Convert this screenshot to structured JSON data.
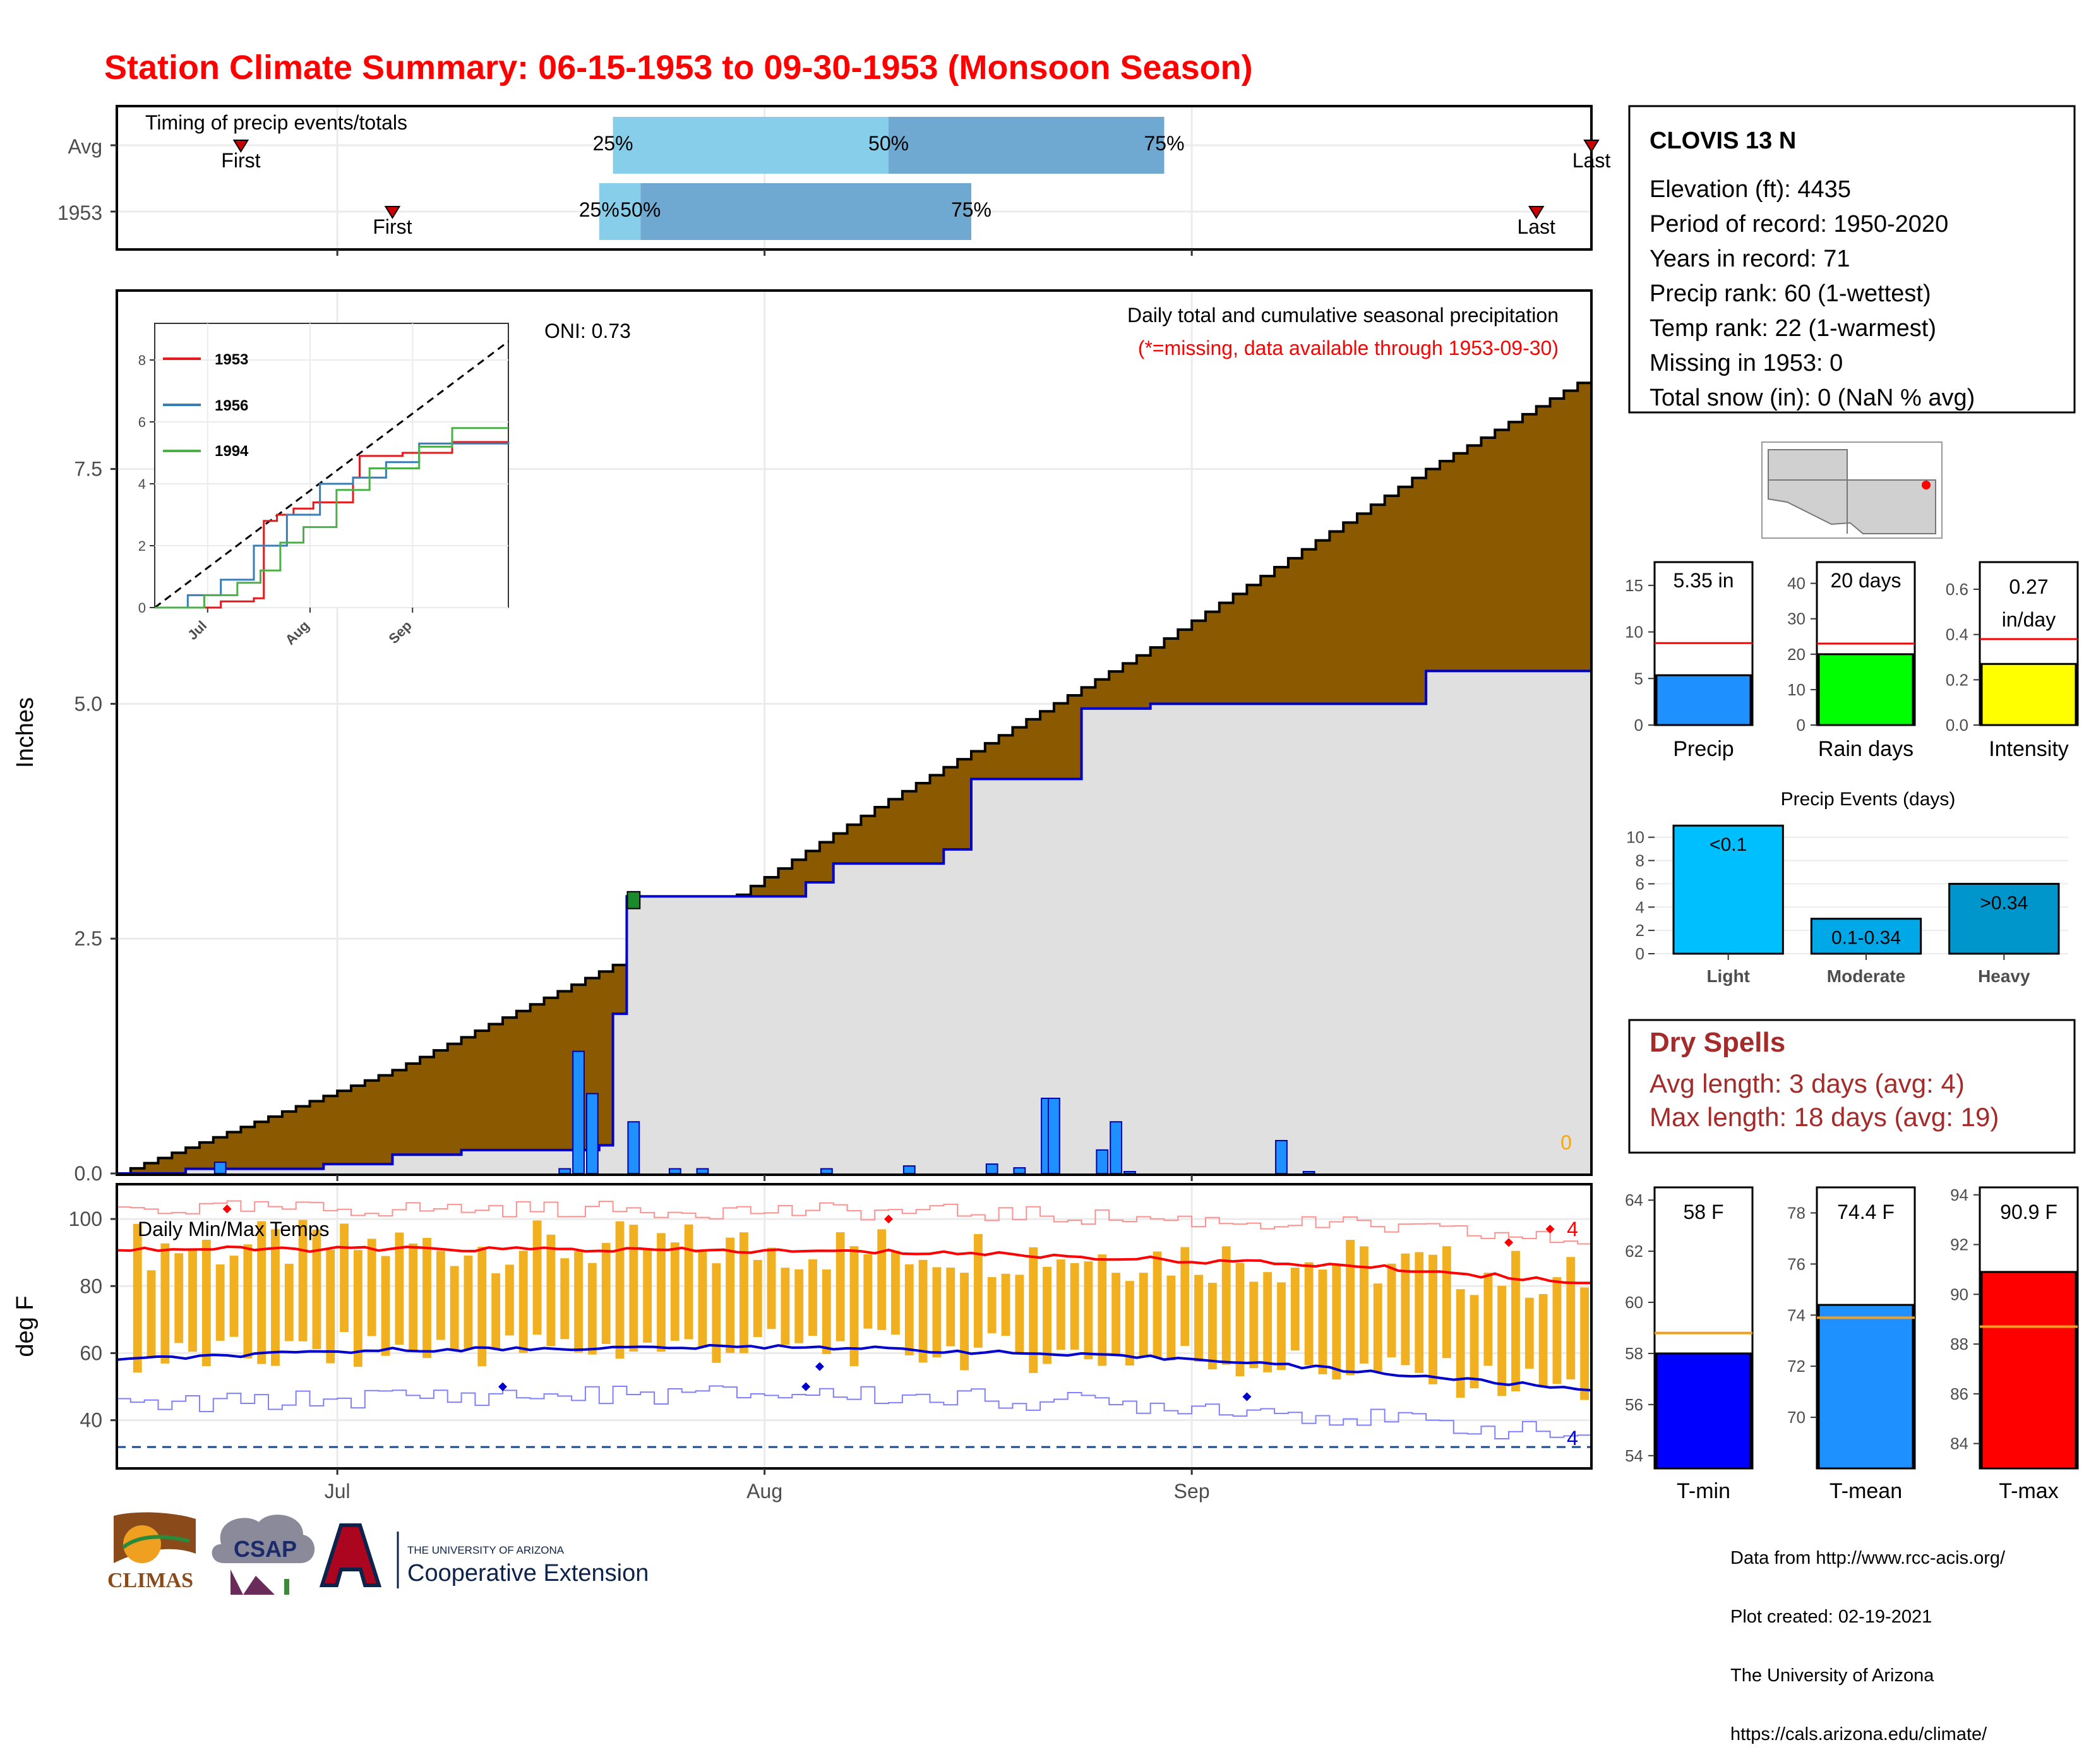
{
  "title": "Station Climate Summary: 06-15-1953 to 09-30-1953 (Monsoon Season)",
  "timing_panel": {
    "label": "Timing of precip events/totals",
    "rows": [
      {
        "name": "Avg",
        "first_day": 9,
        "last_day": 107,
        "p25": 36,
        "p50": 56,
        "p75": 76
      },
      {
        "name": "1953",
        "first_day": 20,
        "last_day": 103,
        "p25": 35,
        "p50": 38,
        "p75": 62
      }
    ],
    "first_label": "First",
    "last_label": "Last",
    "p25_label": "25%",
    "p50_label": "50%",
    "p75_label": "75%",
    "colors": {
      "early": "#87ceeb",
      "late": "#6fa8d0",
      "marker": "#cc0000"
    }
  },
  "precip_panel": {
    "ylabel": "Inches",
    "yticks": [
      "0.0",
      "2.5",
      "5.0",
      "7.5"
    ],
    "ylim": [
      0,
      9.4
    ],
    "annotation_title": "Daily total and cumulative seasonal precipitation",
    "annotation_missing": "(*=missing, data available through 1953-09-30)",
    "oni": "ONI: 0.73",
    "missing_count": "0",
    "colors": {
      "avg_fill": "#8b5a00",
      "obs_fill": "#e0e0e0",
      "obs_line": "#0000cc",
      "daily_bar": "#1e90ff",
      "missing": "#ffa500"
    }
  },
  "inset": {
    "yticks": [
      "0",
      "2",
      "4",
      "6",
      "8"
    ],
    "xticks": [
      "Jul",
      "Aug",
      "Sep"
    ],
    "legend": [
      {
        "name": "1953",
        "color": "#e41a1c"
      },
      {
        "name": "1956",
        "color": "#377eb8"
      },
      {
        "name": "1994",
        "color": "#4daf4a"
      }
    ]
  },
  "temp_panel": {
    "ylabel": "deg F",
    "title": "Daily Min/Max Temps",
    "yticks": [
      "40",
      "60",
      "80",
      "100"
    ],
    "ylim": [
      26,
      110
    ],
    "record_high_count": "4",
    "record_low_count": "4",
    "freeze_line": 32,
    "colors": {
      "bar": "#f0b020",
      "max_line": "#ff0000",
      "min_line": "#0000cc",
      "record_max": "#ff9090",
      "record_min": "#8080ff"
    }
  },
  "x_axis": {
    "ticks": [
      "Jul",
      "Aug",
      "Sep"
    ]
  },
  "station": {
    "name": "CLOVIS 13 N",
    "lines": [
      "Elevation (ft): 4435",
      "Period of record: 1950-2020",
      "Years in record: 71",
      "Precip rank: 60 (1-wettest)",
      "Temp rank: 22 (1-warmest)",
      "Missing in 1953: 0",
      "Total snow (in): 0 (NaN % avg)"
    ]
  },
  "summary_bars": [
    {
      "label": "Precip",
      "value_text": "5.35 in",
      "value": 5.35,
      "avg": 8.8,
      "max": 17.5,
      "yticks": [
        "0",
        "5",
        "10",
        "15"
      ],
      "tick_values": [
        0,
        5,
        10,
        15
      ],
      "color": "#1e90ff"
    },
    {
      "label": "Rain days",
      "value_text": "20 days",
      "value": 20,
      "avg": 23,
      "max": 46,
      "yticks": [
        "0",
        "10",
        "20",
        "30",
        "40"
      ],
      "tick_values": [
        0,
        10,
        20,
        30,
        40
      ],
      "color": "#00ff00"
    },
    {
      "label": "Intensity",
      "value_text": "0.27\nin/day",
      "value_line1": "0.27",
      "value_line2": "in/day",
      "value": 0.27,
      "avg": 0.38,
      "max": 0.72,
      "yticks": [
        "0.0",
        "0.2",
        "0.4",
        "0.6"
      ],
      "tick_values": [
        0,
        0.2,
        0.4,
        0.6
      ],
      "color": "#ffff00"
    }
  ],
  "precip_events": {
    "title": "Precip Events (days)",
    "yticks": [
      "0",
      "2",
      "4",
      "6",
      "8",
      "10"
    ],
    "bars": [
      {
        "category": "Light",
        "bar_label": "<0.1",
        "value": 11
      },
      {
        "category": "Moderate",
        "bar_label": "0.1-0.34",
        "value": 3
      },
      {
        "category": "Heavy",
        "bar_label": ">0.34",
        "value": 6
      }
    ],
    "colors": [
      "#00bfff",
      "#00a8e8",
      "#0096cc"
    ]
  },
  "dry_spells": {
    "title": "Dry Spells",
    "avg_line": "Avg length: 3 days (avg: 4)",
    "max_line": "Max length: 18 days (avg: 19)",
    "color": "#a52a2a"
  },
  "temp_bars": [
    {
      "label": "T-min",
      "value_text": "58 F",
      "value": 58.0,
      "avg": 58.8,
      "min": 53.5,
      "max": 64.5,
      "yticks": [
        "54",
        "56",
        "58",
        "60",
        "62",
        "64"
      ],
      "tick_values": [
        54,
        56,
        58,
        60,
        62,
        64
      ],
      "color": "#0000ff"
    },
    {
      "label": "T-mean",
      "value_text": "74.4 F",
      "value": 74.4,
      "avg": 73.9,
      "min": 68.0,
      "max": 79.0,
      "yticks": [
        "70",
        "72",
        "74",
        "76",
        "78"
      ],
      "tick_values": [
        70,
        72,
        74,
        76,
        78
      ],
      "color": "#1e90ff"
    },
    {
      "label": "T-max",
      "value_text": "90.9 F",
      "value": 90.9,
      "avg": 88.7,
      "min": 83.0,
      "max": 94.3,
      "yticks": [
        "84",
        "86",
        "88",
        "90",
        "92",
        "94"
      ],
      "tick_values": [
        84,
        86,
        88,
        90,
        92,
        94
      ],
      "color": "#ff0000"
    }
  ],
  "credits": [
    "Data from http://www.rcc-acis.org/",
    "Plot created: 02-19-2021",
    "The University of Arizona",
    "https://cals.arizona.edu/climate/"
  ],
  "logos": {
    "climas": "CLIMAS",
    "csap": "CSAP",
    "ua_small": "THE UNIVERSITY OF ARIZONA",
    "ua_big": "Cooperative Extension"
  },
  "chart_data": {
    "type": "area",
    "title": "Daily total and cumulative seasonal precipitation",
    "ylabel": "Inches",
    "x_start": "1953-06-15",
    "x_end": "1953-09-30",
    "ylim": [
      0,
      9.4
    ],
    "series": [
      {
        "name": "Average cumulative",
        "x_days": [
          0,
          20,
          40,
          55,
          75,
          95,
          107
        ],
        "values": [
          0.0,
          1.1,
          2.5,
          3.9,
          5.6,
          7.5,
          8.5
        ]
      },
      {
        "name": "1953 cumulative",
        "x_days": [
          0,
          5,
          10,
          15,
          20,
          25,
          35,
          36,
          37,
          50,
          52,
          60,
          62,
          70,
          75,
          95,
          107
        ],
        "values": [
          0.0,
          0.05,
          0.05,
          0.1,
          0.2,
          0.25,
          0.3,
          1.7,
          2.95,
          3.1,
          3.3,
          3.45,
          4.2,
          4.95,
          5.0,
          5.35,
          5.35
        ]
      },
      {
        "name": "1953 daily precip",
        "x_days": [
          7,
          32,
          33,
          34,
          37,
          40,
          42,
          51,
          57,
          63,
          65,
          67,
          67.5,
          71,
          72,
          73,
          84,
          86
        ],
        "values": [
          0.12,
          0.05,
          1.3,
          0.85,
          0.55,
          0.05,
          0.05,
          0.05,
          0.08,
          0.1,
          0.06,
          0.8,
          0.8,
          0.25,
          0.55,
          0.02,
          0.35,
          0.02
        ]
      }
    ],
    "temperature": {
      "ylabel": "deg F",
      "ylim": [
        26,
        110
      ],
      "avg_max": {
        "x_days": [
          0,
          30,
          60,
          90,
          107
        ],
        "values": [
          91,
          91,
          90,
          86,
          81
        ]
      },
      "avg_min": {
        "x_days": [
          0,
          20,
          50,
          80,
          107
        ],
        "values": [
          58,
          61,
          62,
          58,
          49
        ]
      }
    }
  }
}
